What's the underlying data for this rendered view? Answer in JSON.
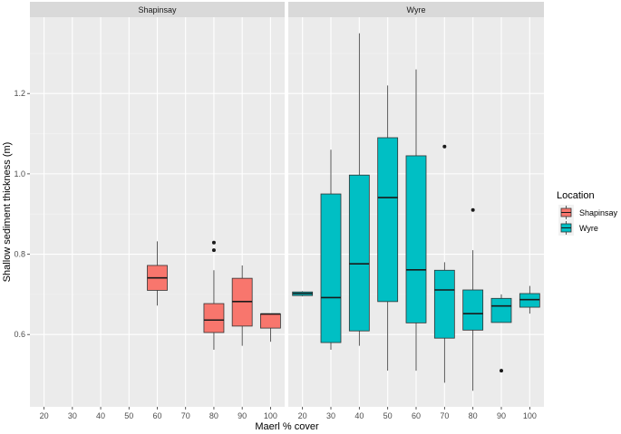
{
  "chart_data": {
    "type": "boxplot",
    "xlabel": "Maerl % cover",
    "ylabel": "Shallow sediment thickness (m)",
    "x_ticks": [
      20,
      30,
      40,
      50,
      60,
      70,
      80,
      90,
      100
    ],
    "y_ticks": [
      0.6,
      0.8,
      1.0,
      1.2
    ],
    "y_tick_labels": [
      "0.6",
      "0.8",
      "1.0",
      "1.2"
    ],
    "ylim": [
      0.42,
      1.39
    ],
    "xlim": [
      15,
      105
    ],
    "colors": {
      "Shapinsay": "#F8766D",
      "Wyre": "#00BFC4",
      "panel": "#EBEBEB",
      "strip": "#D9D9D9",
      "grid_major": "#FFFFFF",
      "grid_minor": "#F5F5F5"
    },
    "legend": {
      "title": "Location",
      "entries": [
        "Shapinsay",
        "Wyre"
      ],
      "placement": "right"
    },
    "panels": [
      {
        "name": "Shapinsay",
        "boxes": [
          {
            "x": 60,
            "whisker_low": 0.672,
            "q1": 0.71,
            "median": 0.741,
            "q3": 0.772,
            "whisker_high": 0.832,
            "outliers": []
          },
          {
            "x": 80,
            "whisker_low": 0.562,
            "q1": 0.605,
            "median": 0.636,
            "q3": 0.677,
            "whisker_high": 0.76,
            "outliers": [
              0.81,
              0.829
            ]
          },
          {
            "x": 90,
            "whisker_low": 0.572,
            "q1": 0.621,
            "median": 0.682,
            "q3": 0.74,
            "whisker_high": 0.772,
            "outliers": []
          },
          {
            "x": 100,
            "whisker_low": 0.582,
            "q1": 0.616,
            "median": 0.651,
            "q3": 0.651,
            "whisker_high": 0.651,
            "outliers": []
          }
        ]
      },
      {
        "name": "Wyre",
        "boxes": [
          {
            "x": 20,
            "whisker_low": 0.695,
            "q1": 0.697,
            "median": 0.702,
            "q3": 0.706,
            "whisker_high": 0.708,
            "outliers": []
          },
          {
            "x": 30,
            "whisker_low": 0.562,
            "q1": 0.58,
            "median": 0.692,
            "q3": 0.95,
            "whisker_high": 1.06,
            "outliers": []
          },
          {
            "x": 40,
            "whisker_low": 0.572,
            "q1": 0.609,
            "median": 0.776,
            "q3": 0.997,
            "whisker_high": 1.35,
            "outliers": []
          },
          {
            "x": 50,
            "whisker_low": 0.51,
            "q1": 0.682,
            "median": 0.941,
            "q3": 1.09,
            "whisker_high": 1.22,
            "outliers": []
          },
          {
            "x": 60,
            "whisker_low": 0.51,
            "q1": 0.629,
            "median": 0.761,
            "q3": 1.045,
            "whisker_high": 1.26,
            "outliers": []
          },
          {
            "x": 70,
            "whisker_low": 0.48,
            "q1": 0.591,
            "median": 0.711,
            "q3": 0.76,
            "whisker_high": 0.78,
            "outliers": [
              1.068
            ]
          },
          {
            "x": 80,
            "whisker_low": 0.46,
            "q1": 0.611,
            "median": 0.652,
            "q3": 0.711,
            "whisker_high": 0.81,
            "outliers": [
              0.91
            ]
          },
          {
            "x": 90,
            "whisker_low": 0.63,
            "q1": 0.63,
            "median": 0.671,
            "q3": 0.69,
            "whisker_high": 0.7,
            "outliers": [
              0.51
            ]
          },
          {
            "x": 100,
            "whisker_low": 0.652,
            "q1": 0.668,
            "median": 0.687,
            "q3": 0.702,
            "whisker_high": 0.721,
            "outliers": []
          }
        ]
      }
    ]
  }
}
